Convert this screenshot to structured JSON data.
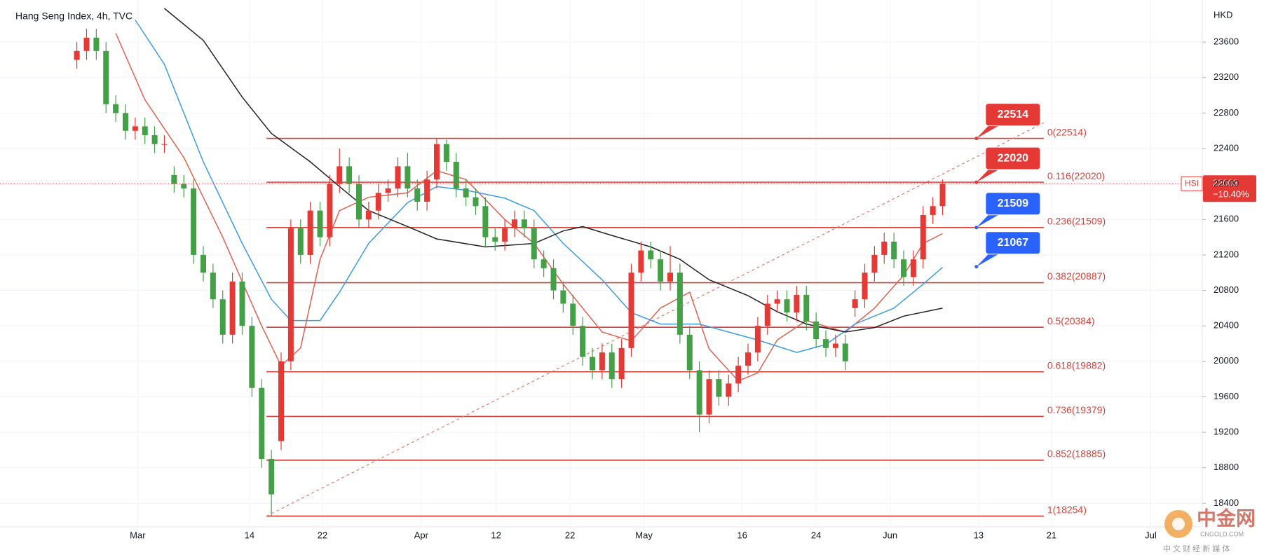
{
  "chart_data": {
    "type": "candlestick",
    "title": "Hang Seng Index, 4h, TVC",
    "y_unit": "HKD",
    "up_color": "#e53935",
    "down_color": "#43a047",
    "grid": true,
    "xlim": [
      -7.9,
      115.7
    ],
    "ylim": [
      18134,
      24075
    ],
    "yticks": [
      18400,
      18800,
      19200,
      19600,
      20000,
      20400,
      20800,
      21200,
      21600,
      22000,
      22400,
      22800,
      23200,
      23600
    ],
    "xticks": [
      {
        "value": 6.25,
        "label": "Mar"
      },
      {
        "value": 17.75,
        "label": "14"
      },
      {
        "value": 25.25,
        "label": "22"
      },
      {
        "value": 35.4,
        "label": "Apr"
      },
      {
        "value": 43.1,
        "label": "12"
      },
      {
        "value": 50.7,
        "label": "22"
      },
      {
        "value": 58.3,
        "label": "May"
      },
      {
        "value": 68.4,
        "label": "16"
      },
      {
        "value": 76,
        "label": "24"
      },
      {
        "value": 83.6,
        "label": "Jun"
      },
      {
        "value": 92.7,
        "label": "13"
      },
      {
        "value": 100.2,
        "label": "21"
      },
      {
        "value": 110.4,
        "label": "Jul"
      }
    ],
    "open": [
      23400,
      23500,
      23650,
      23500,
      22900,
      22800,
      22600,
      22650,
      22550,
      22450,
      22100,
      22000,
      21950,
      21200,
      21000,
      20700,
      20300,
      20900,
      20400,
      19700,
      18900,
      19100,
      20000,
      21500,
      21200,
      21700,
      21400,
      22000,
      22200,
      22000,
      21600,
      21700,
      21900,
      21950,
      22200,
      21950,
      21800,
      22050,
      22450,
      22250,
      21950,
      21850,
      21750,
      21400,
      21350,
      21500,
      21600,
      21500,
      21150,
      21050,
      20800,
      20650,
      20400,
      20050,
      19900,
      20100,
      19800,
      20150,
      21000,
      21250,
      21150,
      20900,
      21000,
      20300,
      19900,
      19400,
      19800,
      19600,
      19750,
      19950,
      20100,
      20400,
      20650,
      20700,
      20550,
      20750,
      20450,
      20250,
      20150,
      20200,
      20600,
      20700,
      21000,
      21200,
      21350,
      21150,
      20950,
      21150,
      21650,
      21750
    ],
    "high": [
      23600,
      23750,
      23750,
      23600,
      23000,
      22900,
      22750,
      22750,
      22650,
      22550,
      22200,
      22100,
      22050,
      21300,
      21100,
      20800,
      21000,
      21000,
      20500,
      19800,
      19000,
      20100,
      21600,
      21600,
      21800,
      21800,
      22100,
      22400,
      22300,
      22100,
      21800,
      22000,
      22050,
      22300,
      22350,
      22050,
      22150,
      22514,
      22500,
      22350,
      22050,
      21950,
      21850,
      21500,
      21600,
      21700,
      21700,
      21600,
      21250,
      21150,
      20900,
      20750,
      20500,
      20150,
      20200,
      20200,
      20250,
      21100,
      21350,
      21350,
      21250,
      21300,
      21100,
      20400,
      20000,
      19900,
      19900,
      19850,
      20050,
      20200,
      20500,
      20750,
      20800,
      20800,
      20850,
      20850,
      20550,
      20350,
      20300,
      20300,
      20800,
      21100,
      21300,
      21450,
      21450,
      21250,
      21250,
      21750,
      21850,
      22050
    ],
    "low": [
      23300,
      23400,
      23400,
      22800,
      22700,
      22500,
      22500,
      22450,
      22350,
      22350,
      21900,
      21850,
      21100,
      20900,
      20600,
      20200,
      20200,
      20300,
      19600,
      18800,
      18254,
      19000,
      19900,
      21100,
      21100,
      21300,
      21300,
      21900,
      21900,
      21500,
      21500,
      21600,
      21800,
      21850,
      21850,
      21700,
      21700,
      21950,
      22150,
      21850,
      21750,
      21650,
      21300,
      21250,
      21250,
      21400,
      21400,
      21050,
      20950,
      20700,
      20550,
      20300,
      19950,
      19800,
      19800,
      19700,
      19700,
      20050,
      20900,
      21050,
      20800,
      20800,
      20200,
      19800,
      19200,
      19300,
      19500,
      19500,
      19650,
      19850,
      20000,
      20300,
      20550,
      20450,
      20450,
      20350,
      20150,
      20050,
      20050,
      19900,
      20500,
      20600,
      20900,
      21100,
      21050,
      20850,
      20850,
      21050,
      21550,
      21650
    ],
    "close": [
      23500,
      23650,
      23500,
      22900,
      22800,
      22600,
      22650,
      22550,
      22450,
      22450,
      22000,
      21950,
      21200,
      21000,
      20700,
      20300,
      20900,
      20400,
      19700,
      18900,
      18500,
      20000,
      21500,
      21200,
      21700,
      21400,
      22000,
      22200,
      22000,
      21600,
      21700,
      21900,
      21950,
      22200,
      21950,
      21800,
      22050,
      22450,
      22250,
      21950,
      21850,
      21750,
      21400,
      21350,
      21500,
      21600,
      21500,
      21150,
      21050,
      20800,
      20650,
      20400,
      20050,
      19900,
      20100,
      19800,
      20150,
      21000,
      21250,
      21150,
      20900,
      21000,
      20300,
      19900,
      19400,
      19800,
      19600,
      19750,
      19950,
      20100,
      20400,
      20650,
      20700,
      20550,
      20750,
      20450,
      20250,
      20150,
      20200,
      20000,
      20700,
      21000,
      21200,
      21350,
      21150,
      20950,
      21150,
      21650,
      21750,
      22003
    ],
    "series": [
      {
        "color": "#e0614f",
        "x": [
          4,
          7,
          11,
          15,
          19,
          21,
          23,
          25,
          27,
          30,
          34,
          37,
          40,
          44,
          47,
          50,
          54,
          57,
          60,
          63,
          65,
          68,
          70,
          72,
          75,
          79,
          82,
          85,
          87,
          89
        ],
        "values": [
          23700,
          22950,
          22300,
          21400,
          20400,
          19950,
          20150,
          21150,
          21700,
          21850,
          21900,
          22150,
          22050,
          21600,
          21330,
          20870,
          20330,
          20230,
          20600,
          20780,
          20140,
          19780,
          19870,
          20240,
          20460,
          20330,
          20600,
          20970,
          21330,
          21440
        ]
      },
      {
        "color": "#3d9be0",
        "x": [
          6,
          9,
          13,
          17,
          20,
          22,
          25,
          27,
          30,
          34,
          37,
          40,
          44,
          47,
          50,
          54,
          57,
          60,
          64,
          67,
          70,
          74,
          77,
          80,
          84,
          87,
          89
        ],
        "values": [
          23850,
          23350,
          22250,
          21330,
          20700,
          20460,
          20460,
          20780,
          21330,
          21790,
          21970,
          21930,
          21840,
          21700,
          21330,
          20920,
          20550,
          20420,
          20420,
          20330,
          20240,
          20100,
          20190,
          20420,
          20600,
          20870,
          21060
        ]
      },
      {
        "color": "#222222",
        "x": [
          9,
          13,
          17,
          20,
          24,
          27,
          30,
          34,
          37,
          42,
          47,
          50,
          52,
          55,
          59,
          62,
          65,
          69,
          72,
          75,
          79,
          82,
          85,
          89
        ],
        "values": [
          23980,
          23620,
          22980,
          22570,
          22250,
          21970,
          21700,
          21520,
          21380,
          21290,
          21330,
          21470,
          21520,
          21420,
          21290,
          21150,
          20920,
          20740,
          20560,
          20420,
          20330,
          20380,
          20510,
          20600
        ]
      }
    ],
    "trendline": {
      "color": "#e07a6a",
      "x": [
        19.5,
        99.4
      ],
      "values": [
        18254,
        22690
      ]
    },
    "fib": {
      "color": "#d9423a",
      "levels": [
        22514,
        22020,
        21509,
        20887,
        20384,
        19882,
        19379,
        18885,
        18254
      ],
      "level_labels": [
        "0(22514)",
        "0.116(22020)",
        "0.236(21509)",
        "0.382(20887)",
        "0.5(20384)",
        "0.618(19882)",
        "0.736(19379)",
        "0.852(18885)",
        "1(18254)"
      ]
    },
    "callouts": [
      {
        "value": 22514,
        "color": "#e53935"
      },
      {
        "value": 22020,
        "color": "#e53935"
      },
      {
        "value": 21509,
        "color": "#2962ff"
      },
      {
        "value": 21067,
        "color": "#2962ff"
      }
    ],
    "last_price": {
      "symbol": "HSI",
      "value": 22003,
      "change": "−10.40%",
      "color": "#e53935"
    },
    "watermark": {
      "name": "中金网",
      "site": "CNGOLD.COM",
      "slogan": "中 文 财 经 新 媒 体"
    }
  }
}
